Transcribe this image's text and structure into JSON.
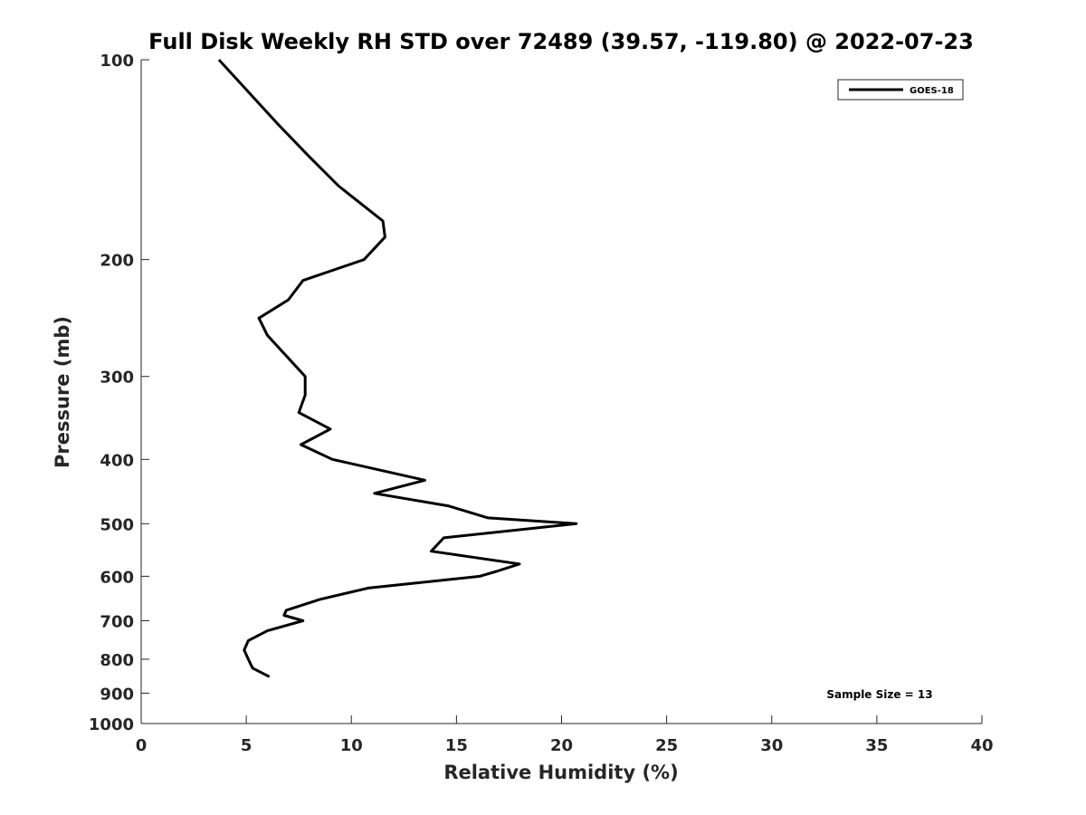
{
  "chart_data": {
    "type": "line",
    "title": "Full Disk Weekly RH STD over 72489 (39.57, -119.80) @ 2022-07-23",
    "xlabel": "Relative Humidity (%)",
    "ylabel": "Pressure (mb)",
    "xlim": [
      0,
      40
    ],
    "ylim": [
      100,
      1000
    ],
    "y_scale": "log",
    "y_reversed": true,
    "x_ticks": [
      0,
      5,
      10,
      15,
      20,
      25,
      30,
      35,
      40
    ],
    "y_ticks": [
      100,
      200,
      300,
      400,
      500,
      600,
      700,
      800,
      900,
      1000
    ],
    "grid": false,
    "legend_position": "top-right",
    "annotation": "Sample Size = 13",
    "series": [
      {
        "name": "GOES-18",
        "color": "#000000",
        "points": [
          [
            3.7,
            100
          ],
          [
            6.5,
            125
          ],
          [
            8.0,
            140
          ],
          [
            9.4,
            155
          ],
          [
            11.5,
            175
          ],
          [
            11.6,
            185
          ],
          [
            10.6,
            200
          ],
          [
            7.7,
            215
          ],
          [
            7.0,
            230
          ],
          [
            5.6,
            245
          ],
          [
            6.0,
            260
          ],
          [
            7.8,
            300
          ],
          [
            7.8,
            320
          ],
          [
            7.5,
            340
          ],
          [
            9.0,
            360
          ],
          [
            7.6,
            380
          ],
          [
            9.1,
            400
          ],
          [
            13.5,
            430
          ],
          [
            11.1,
            450
          ],
          [
            14.6,
            470
          ],
          [
            16.5,
            490
          ],
          [
            20.7,
            500
          ],
          [
            14.4,
            525
          ],
          [
            13.8,
            550
          ],
          [
            18.0,
            575
          ],
          [
            16.9,
            590
          ],
          [
            16.1,
            600
          ],
          [
            10.8,
            625
          ],
          [
            8.5,
            650
          ],
          [
            6.9,
            675
          ],
          [
            6.8,
            687
          ],
          [
            7.7,
            700
          ],
          [
            6.0,
            725
          ],
          [
            5.1,
            750
          ],
          [
            4.9,
            775
          ],
          [
            5.1,
            800
          ],
          [
            5.3,
            825
          ],
          [
            6.1,
            850
          ]
        ]
      }
    ]
  }
}
